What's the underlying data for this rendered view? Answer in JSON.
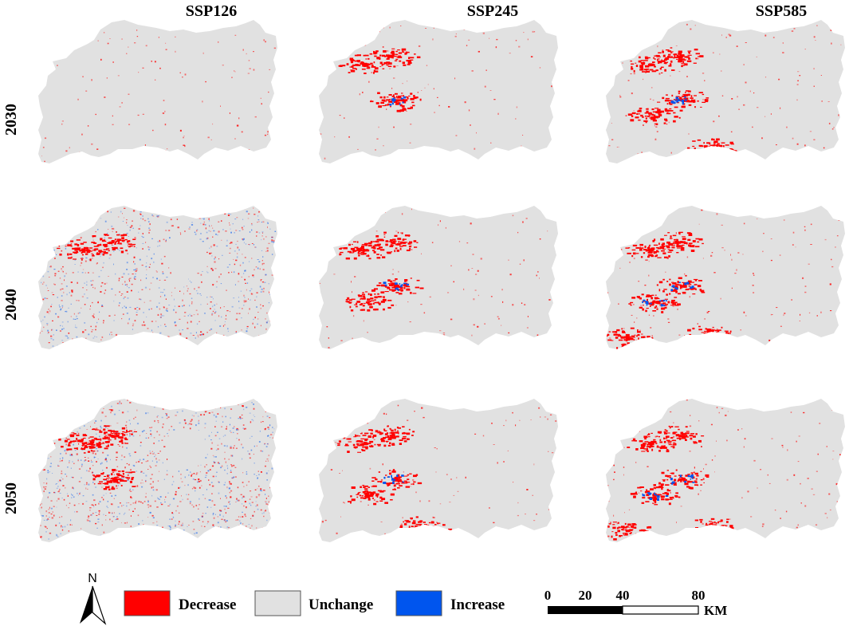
{
  "columns": [
    "SSP126",
    "SSP245",
    "SSP585"
  ],
  "rows": [
    "2030",
    "2040",
    "2050"
  ],
  "legend": [
    {
      "key": "decrease",
      "label": "Decrease",
      "color": "#ff0000"
    },
    {
      "key": "unchange",
      "label": "Unchange",
      "color": "#e1e1e1"
    },
    {
      "key": "increase",
      "label": "Increase",
      "color": "#0055ee"
    }
  ],
  "scale_bar": {
    "ticks": [
      "0",
      "20",
      "40",
      "80"
    ],
    "unit": "KM"
  },
  "north_arrow": {
    "label": "N"
  },
  "colors": {
    "background": "#ffffff",
    "unchanged": "#e1e1e1",
    "decrease": "#ff0000",
    "increase": "#0055ee"
  }
}
